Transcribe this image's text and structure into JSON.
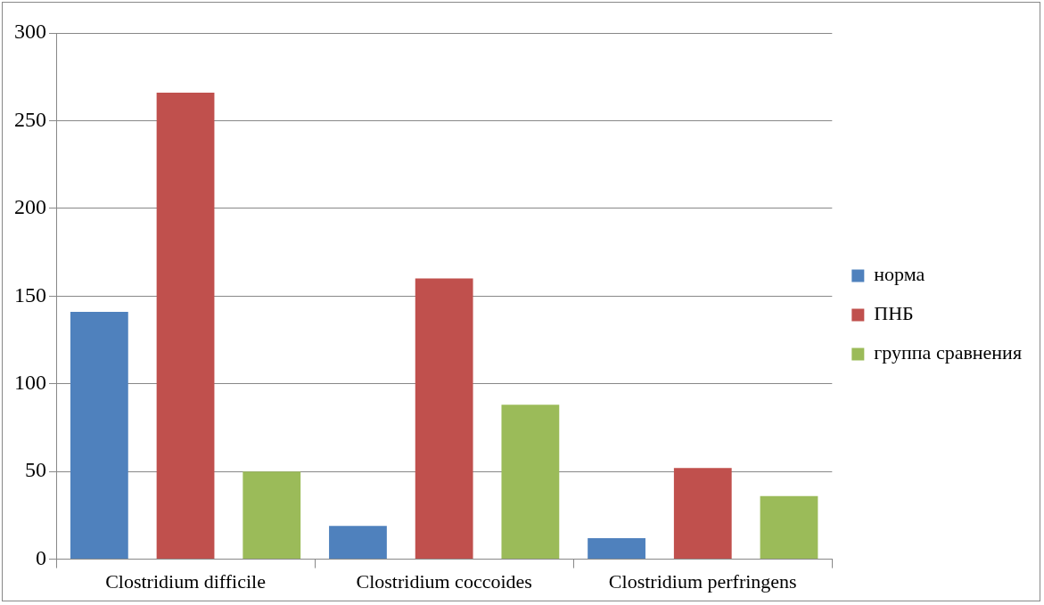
{
  "chart_data": {
    "type": "bar",
    "categories": [
      "Clostridium difficile",
      "Clostridium coccoides",
      "Clostridium perfringens"
    ],
    "series": [
      {
        "name": "норма",
        "color": "#4f81bd",
        "values": [
          141,
          19,
          12
        ]
      },
      {
        "name": "ПНБ",
        "color": "#c0504d",
        "values": [
          266,
          160,
          52
        ]
      },
      {
        "name": "группа сравнения",
        "color": "#9bbb59",
        "values": [
          50,
          88,
          36
        ]
      }
    ],
    "ylim": [
      0,
      300
    ],
    "yticks": [
      0,
      50,
      100,
      150,
      200,
      250,
      300
    ],
    "grid": "y",
    "legend": "right"
  }
}
